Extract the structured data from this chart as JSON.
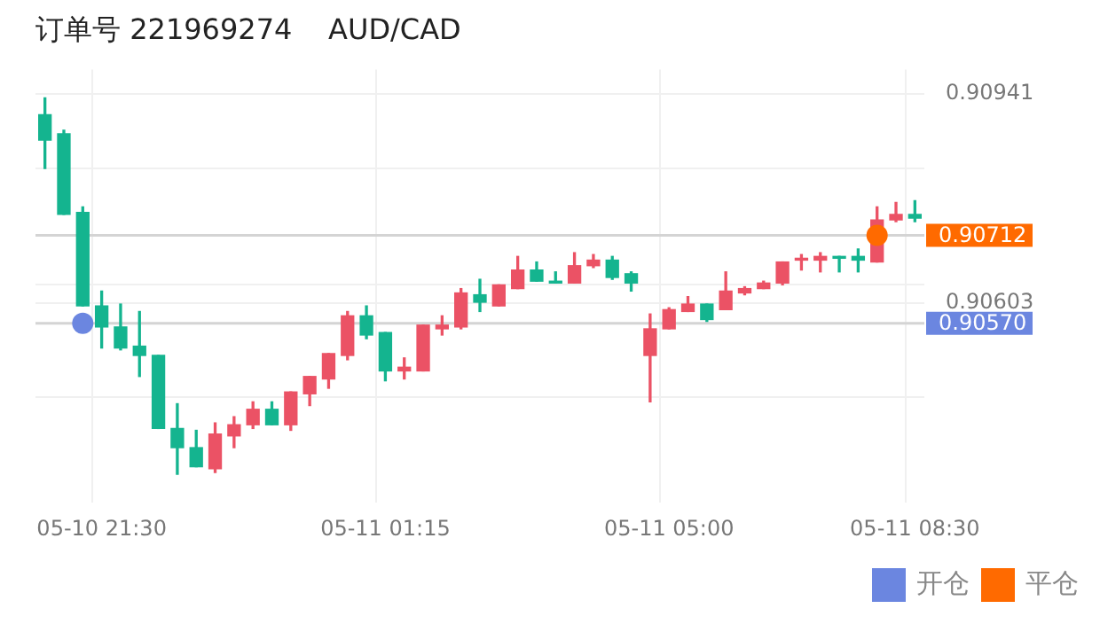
{
  "chart_data": {
    "type": "candlestick",
    "title": "订单号 221969274    AUD/CAD",
    "categories": [
      null,
      null,
      null,
      "05-10 21:30",
      null,
      null,
      null,
      null,
      null,
      null,
      null,
      null,
      null,
      null,
      null,
      null,
      null,
      null,
      "05-11 01:15",
      null,
      null,
      null,
      null,
      null,
      null,
      null,
      null,
      null,
      null,
      null,
      null,
      null,
      null,
      "05-11 05:00",
      null,
      null,
      null,
      null,
      null,
      null,
      null,
      null,
      null,
      null,
      null,
      null,
      "05-11 08:30"
    ],
    "ohlc": [
      [
        0.90907,
        0.90934,
        0.9082,
        0.90866
      ],
      [
        0.90876,
        0.90882,
        0.90746,
        0.90746
      ],
      [
        0.90749,
        0.90758,
        0.90598,
        0.90598
      ],
      [
        0.90598,
        0.90622,
        0.9053,
        0.90564
      ],
      [
        0.90564,
        0.90601,
        0.90527,
        0.9053
      ],
      [
        0.90533,
        0.90589,
        0.90484,
        0.90518
      ],
      [
        0.90518,
        0.90518,
        0.904,
        0.904
      ],
      [
        0.904,
        0.9044,
        0.90326,
        0.90369
      ],
      [
        0.90369,
        0.90397,
        0.90338,
        0.90338
      ],
      [
        0.90335,
        0.90409,
        0.90329,
        0.90391
      ],
      [
        0.90388,
        0.90419,
        0.90369,
        0.90406
      ],
      [
        0.90406,
        0.90443,
        0.904,
        0.90431
      ],
      [
        0.90431,
        0.90443,
        0.90406,
        0.90406
      ],
      [
        0.90406,
        0.90459,
        0.90397,
        0.90459
      ],
      [
        0.90456,
        0.90484,
        0.90437,
        0.90484
      ],
      [
        0.9048,
        0.90521,
        0.90465,
        0.90521
      ],
      [
        0.90518,
        0.90589,
        0.90511,
        0.90582
      ],
      [
        0.90582,
        0.90598,
        0.90545,
        0.90551
      ],
      [
        0.90555,
        0.90555,
        0.90477,
        0.90493
      ],
      [
        0.90493,
        0.90514,
        0.9048,
        0.90499
      ],
      [
        0.90493,
        0.90567,
        0.90493,
        0.90567
      ],
      [
        0.90561,
        0.90582,
        0.90551,
        0.90567
      ],
      [
        0.90564,
        0.90626,
        0.90561,
        0.90619
      ],
      [
        0.90616,
        0.90641,
        0.90589,
        0.90604
      ],
      [
        0.90598,
        0.90632,
        0.90598,
        0.90632
      ],
      [
        0.90626,
        0.90678,
        0.90626,
        0.90656
      ],
      [
        0.90656,
        0.90669,
        0.90638,
        0.90638
      ],
      [
        0.90638,
        0.90653,
        0.90635,
        0.90635
      ],
      [
        0.90635,
        0.90684,
        0.90635,
        0.90663
      ],
      [
        0.90663,
        0.90681,
        0.9066,
        0.90672
      ],
      [
        0.90672,
        0.90678,
        0.90641,
        0.90644
      ],
      [
        0.9065,
        0.90653,
        0.90622,
        0.90635
      ],
      [
        0.90518,
        0.90585,
        0.90443,
        0.90561
      ],
      [
        0.90561,
        0.90595,
        0.90561,
        0.90592
      ],
      [
        0.90589,
        0.90613,
        0.90589,
        0.90601
      ],
      [
        0.90601,
        0.90601,
        0.90573,
        0.90576
      ],
      [
        0.90592,
        0.90653,
        0.90592,
        0.90622
      ],
      [
        0.90619,
        0.90629,
        0.90616,
        0.90626
      ],
      [
        0.90626,
        0.90638,
        0.90626,
        0.90635
      ],
      [
        0.90635,
        0.90669,
        0.90632,
        0.90669
      ],
      [
        0.90672,
        0.90681,
        0.90656,
        0.90675
      ],
      [
        0.90672,
        0.90684,
        0.90653,
        0.90678
      ],
      [
        0.90678,
        0.90678,
        0.90653,
        0.90675
      ],
      [
        0.90678,
        0.9069,
        0.90653,
        0.90672
      ],
      [
        0.90669,
        0.90758,
        0.90669,
        0.90737
      ],
      [
        0.90737,
        0.90765,
        0.90734,
        0.90746
      ],
      [
        0.90746,
        0.90768,
        0.90734,
        0.9074
      ]
    ],
    "colors": [
      "#14b48f",
      "#14b48f",
      "#14b48f",
      "#14b48f",
      "#14b48f",
      "#14b48f",
      "#14b48f",
      "#14b48f",
      "#14b48f",
      "#eb5265",
      "#eb5265",
      "#eb5265",
      "#14b48f",
      "#eb5265",
      "#eb5265",
      "#eb5265",
      "#eb5265",
      "#14b48f",
      "#14b48f",
      "#eb5265",
      "#eb5265",
      "#eb5265",
      "#eb5265",
      "#14b48f",
      "#eb5265",
      "#eb5265",
      "#14b48f",
      "#14b48f",
      "#eb5265",
      "#eb5265",
      "#14b48f",
      "#14b48f",
      "#eb5265",
      "#eb5265",
      "#eb5265",
      "#14b48f",
      "#eb5265",
      "#eb5265",
      "#eb5265",
      "#eb5265",
      "#eb5265",
      "#eb5265",
      "#14b48f",
      "#14b48f",
      "#eb5265",
      "#eb5265",
      "#14b48f"
    ],
    "series": [
      {
        "name": "开仓",
        "type": "scatter",
        "color": "#6b86e0",
        "values": [
          null,
          null,
          0.9057,
          null,
          null,
          null,
          null,
          null,
          null,
          null,
          null,
          null,
          null,
          null,
          null,
          null,
          null,
          null,
          null,
          null,
          null,
          null,
          null,
          null,
          null,
          null,
          null,
          null,
          null,
          null,
          null,
          null,
          null,
          null,
          null,
          null,
          null,
          null,
          null,
          null,
          null,
          null,
          null,
          null,
          null,
          null,
          null
        ]
      },
      {
        "name": "平仓",
        "type": "scatter",
        "color": "#ff6a00",
        "values": [
          null,
          null,
          null,
          null,
          null,
          null,
          null,
          null,
          null,
          null,
          null,
          null,
          null,
          null,
          null,
          null,
          null,
          null,
          null,
          null,
          null,
          null,
          null,
          null,
          null,
          null,
          null,
          null,
          null,
          null,
          null,
          null,
          null,
          null,
          null,
          null,
          null,
          null,
          null,
          null,
          null,
          null,
          null,
          null,
          0.90712,
          null,
          null
        ]
      }
    ],
    "ylim": [
      0.9028,
      0.9098
    ],
    "yticks": [
      0.90941,
      0.90603,
      {
        "value": 0.9082,
        "label": null
      },
      {
        "value": 0.90632,
        "label": null
      },
      {
        "value": 0.9045,
        "label": null
      }
    ],
    "ref_lines": [
      {
        "axis": "y",
        "value": 0.90712,
        "label": "0.90712",
        "color": "#d4d4d4"
      },
      {
        "axis": "y",
        "value": 0.9057,
        "label": "0.90570",
        "color": "#d4d4d4"
      }
    ],
    "grid": true,
    "legend": "bottom right",
    "marker": "circle"
  }
}
